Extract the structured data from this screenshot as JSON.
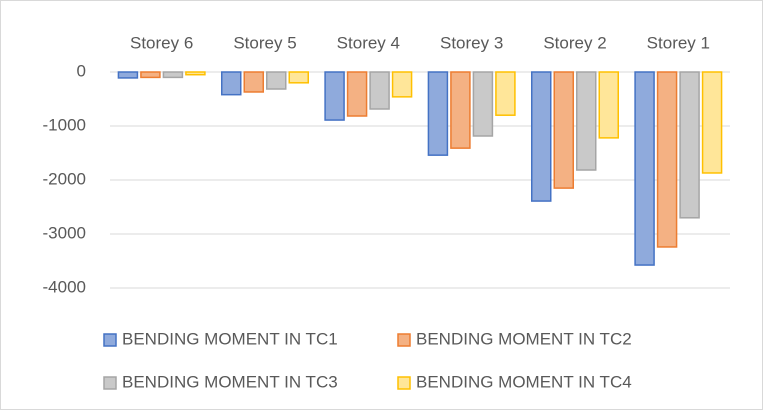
{
  "chart_data": {
    "type": "bar",
    "categories": [
      "Storey 6",
      "Storey 5",
      "Storey 4",
      "Storey 3",
      "Storey 2",
      "Storey 1"
    ],
    "series": [
      {
        "name": "BENDING MOMENT IN TC1",
        "color": "#8faadc",
        "border": "#4472c4",
        "values": [
          -110,
          -420,
          -890,
          -1540,
          -2390,
          -3575
        ]
      },
      {
        "name": "BENDING MOMENT IN TC2",
        "color": "#f4b183",
        "border": "#ed7d31",
        "values": [
          -100,
          -370,
          -815,
          -1410,
          -2150,
          -3240
        ]
      },
      {
        "name": "BENDING MOMENT IN TC3",
        "color": "#c9c9c9",
        "border": "#a5a5a5",
        "values": [
          -100,
          -315,
          -685,
          -1185,
          -1815,
          -2700
        ]
      },
      {
        "name": "BENDING MOMENT IN TC4",
        "color": "#ffe699",
        "border": "#ffc000",
        "values": [
          -50,
          -200,
          -460,
          -800,
          -1220,
          -1870
        ]
      }
    ],
    "ylim": [
      -4000,
      0
    ],
    "yticks": [
      0,
      -1000,
      -2000,
      -3000,
      -4000
    ],
    "grid": true,
    "legend": "bottom"
  }
}
